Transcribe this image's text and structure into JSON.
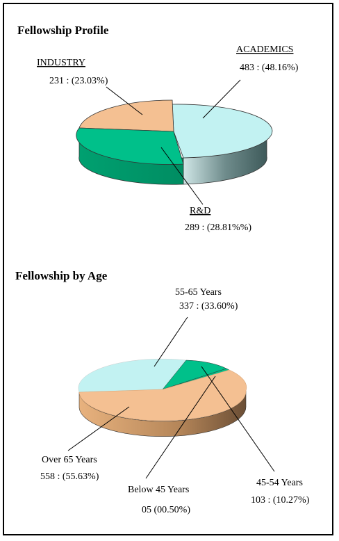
{
  "chart_data": [
    {
      "type": "pie",
      "title": "Fellowship Profile",
      "slices": [
        {
          "name": "ACADEMICS",
          "value": 483,
          "label": "483 : (48.16%)"
        },
        {
          "name": "INDUSTRY",
          "value": 231,
          "label": "231 : (23.03%)"
        },
        {
          "name": "R&D",
          "value": 289,
          "label": "289 : (28.81%%)"
        }
      ],
      "colors": {
        "ACADEMICS": "#c2f2f2",
        "INDUSTRY": "#f4c092",
        "R&D": "#00c08a"
      }
    },
    {
      "type": "pie",
      "title": "Fellowship by Age",
      "slices": [
        {
          "name": "55-65 Years",
          "value": 337,
          "label": "337 : (33.60%)"
        },
        {
          "name": "45-54 Years",
          "value": 103,
          "label": "103 : (10.27%)"
        },
        {
          "name": "Below 45 Years",
          "value": 5,
          "label": "05  (00.50%)"
        },
        {
          "name": "Over 65 Years",
          "value": 558,
          "label": "558 : (55.63%)"
        }
      ],
      "colors": {
        "55-65 Years": "#c2f2f2",
        "45-54 Years": "#00c08a",
        "Below 45 Years": "#00c08a",
        "Over 65 Years": "#f4c092"
      }
    }
  ]
}
